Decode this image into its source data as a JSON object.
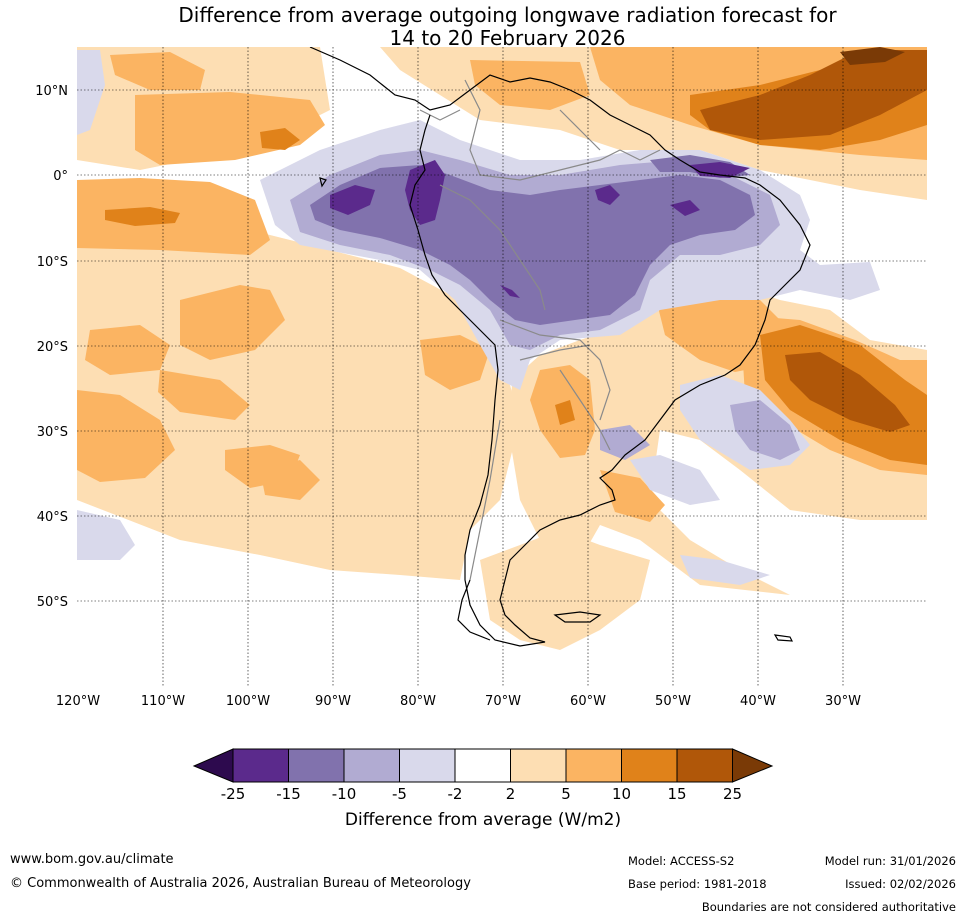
{
  "map": {
    "title_line1": "Difference from average outgoing longwave radiation forecast for",
    "title_line2": "14 to 20 February 2026",
    "lon_labels": [
      "120°W",
      "110°W",
      "100°W",
      "90°W",
      "80°W",
      "70°W",
      "60°W",
      "50°W",
      "40°W",
      "30°W"
    ],
    "lat_labels": [
      "10°N",
      "0°",
      "10°S",
      "20°S",
      "30°S",
      "40°S",
      "50°S"
    ],
    "colorbar": {
      "ticks": [
        "-25",
        "-15",
        "-10",
        "-5",
        "-2",
        "2",
        "5",
        "10",
        "15",
        "25"
      ],
      "title": "Difference from average (W/m2)",
      "colors": {
        "lt_-25": "#2d0a4e",
        "-25_-15": "#5b2a8c",
        "-15_-10": "#8172ad",
        "-10_-5": "#b1abd2",
        "-5_-2": "#d9d9eb",
        "-2_2": "#ffffff",
        "2_5": "#fddeb3",
        "5_10": "#fbb462",
        "10_15": "#e0821a",
        "15_25": "#b05709",
        "gt_25": "#7a3a06"
      }
    }
  },
  "footer": {
    "website": "www.bom.gov.au/climate",
    "copyright": "© Commonwealth of Australia 2026, Australian Bureau of Meteorology",
    "model": "Model: ACCESS-S2",
    "base_period": "Base period: 1981-2018",
    "model_run": "Model run: 31/01/2026",
    "issued": "Issued: 02/02/2026",
    "disclaimer": "Boundaries are not considered authoritative"
  }
}
